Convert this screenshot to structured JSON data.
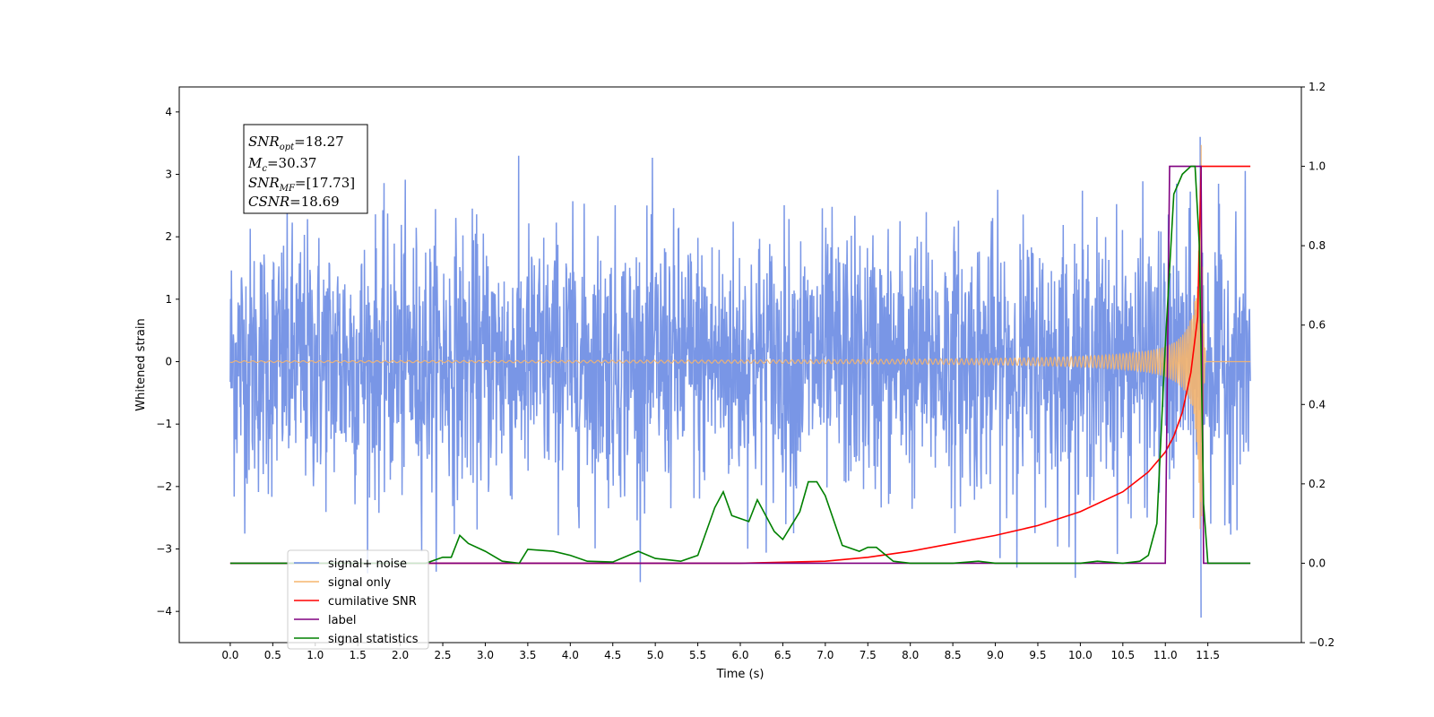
{
  "chart_data": {
    "type": "line",
    "xlabel": "Time (s)",
    "ylabel_left": "Whitened strain",
    "ylabel_right": "",
    "xlim": [
      -0.6,
      12.6
    ],
    "ylim_left": [
      -4.5,
      4.4
    ],
    "ylim_right": [
      -0.2,
      1.2
    ],
    "x_ticks": [
      "0.0",
      "0.5",
      "1.0",
      "1.5",
      "2.0",
      "2.5",
      "3.0",
      "3.5",
      "4.0",
      "4.5",
      "5.0",
      "5.5",
      "6.0",
      "6.5",
      "7.0",
      "7.5",
      "8.0",
      "8.5",
      "9.0",
      "9.5",
      "10.0",
      "10.5",
      "11.0",
      "11.5"
    ],
    "y_ticks_left": [
      "4",
      "3",
      "2",
      "1",
      "0",
      "−1",
      "−2",
      "−3",
      "−4"
    ],
    "y_ticks_right": [
      "1.2",
      "1.0",
      "0.8",
      "0.6",
      "0.4",
      "0.2",
      "0.0",
      "−0.2"
    ],
    "grid": false,
    "legend_position": "lower-left",
    "colors": {
      "signal_noise": "#6a8be3",
      "signal_only": "#f5b56e",
      "cumulative_snr": "#ff0000",
      "label": "#800080",
      "statistics": "#008000"
    },
    "series": [
      {
        "name": "signal+ noise",
        "axis": "left",
        "description_range": [
          -4.1,
          4.0
        ],
        "x_range": [
          0.0,
          12.0
        ]
      },
      {
        "name": "signal only",
        "axis": "left",
        "chirp_end": 11.42,
        "peak": 4.0
      },
      {
        "name": "cumilative SNR",
        "axis": "right",
        "x": [
          0.0,
          6.0,
          7.0,
          7.5,
          8.0,
          8.5,
          9.0,
          9.5,
          10.0,
          10.5,
          10.8,
          11.0,
          11.1,
          11.2,
          11.3,
          11.38,
          11.42,
          11.5,
          12.0
        ],
        "y": [
          0.0,
          0.0,
          0.005,
          0.015,
          0.03,
          0.05,
          0.07,
          0.095,
          0.13,
          0.18,
          0.23,
          0.28,
          0.32,
          0.38,
          0.48,
          0.62,
          1.0,
          1.0,
          1.0
        ]
      },
      {
        "name": "label",
        "axis": "right",
        "x": [
          0.0,
          11.0,
          11.05,
          11.42,
          11.45,
          12.0
        ],
        "y": [
          0.0,
          0.0,
          1.0,
          1.0,
          0.0,
          0.0
        ]
      },
      {
        "name": "signal statistics",
        "axis": "right",
        "x": [
          0.0,
          2.3,
          2.5,
          2.6,
          2.7,
          2.8,
          3.0,
          3.2,
          3.4,
          3.5,
          3.8,
          4.0,
          4.2,
          4.5,
          4.8,
          5.0,
          5.3,
          5.5,
          5.7,
          5.8,
          5.9,
          6.1,
          6.2,
          6.4,
          6.5,
          6.7,
          6.8,
          6.9,
          7.0,
          7.2,
          7.4,
          7.5,
          7.6,
          7.8,
          8.0,
          8.5,
          8.8,
          9.0,
          10.0,
          10.2,
          10.5,
          10.7,
          10.8,
          10.9,
          11.0,
          11.1,
          11.2,
          11.3,
          11.35,
          11.4,
          11.45,
          11.5,
          12.0
        ],
        "y": [
          0.0,
          0.0,
          0.015,
          0.015,
          0.07,
          0.05,
          0.03,
          0.005,
          0.0,
          0.035,
          0.03,
          0.02,
          0.005,
          0.003,
          0.03,
          0.012,
          0.005,
          0.02,
          0.14,
          0.18,
          0.12,
          0.105,
          0.16,
          0.08,
          0.06,
          0.13,
          0.205,
          0.205,
          0.17,
          0.045,
          0.03,
          0.04,
          0.04,
          0.005,
          0.0,
          0.0,
          0.005,
          0.0,
          0.0,
          0.005,
          0.0,
          0.005,
          0.02,
          0.1,
          0.55,
          0.93,
          0.98,
          1.0,
          1.0,
          0.8,
          0.15,
          0.0,
          0.0
        ]
      }
    ],
    "legend": [
      {
        "key": "signal_noise",
        "label": "signal+ noise"
      },
      {
        "key": "signal_only",
        "label": "signal only"
      },
      {
        "key": "cumulative_snr",
        "label": "cumilative SNR"
      },
      {
        "key": "label",
        "label": "label"
      },
      {
        "key": "statistics",
        "label": "signal statistics"
      }
    ],
    "annotation": {
      "snr_opt_main": "SNR",
      "snr_opt_sub": "opt",
      "snr_opt_val": "=18.27",
      "mc_main": "M",
      "mc_sub": "c",
      "mc_val": "=30.37",
      "snr_mf_main": "SNR",
      "snr_mf_sub": "MF",
      "snr_mf_val": "=[17.73]",
      "csnr_main": "CSNR",
      "csnr_val": "=18.69"
    }
  }
}
